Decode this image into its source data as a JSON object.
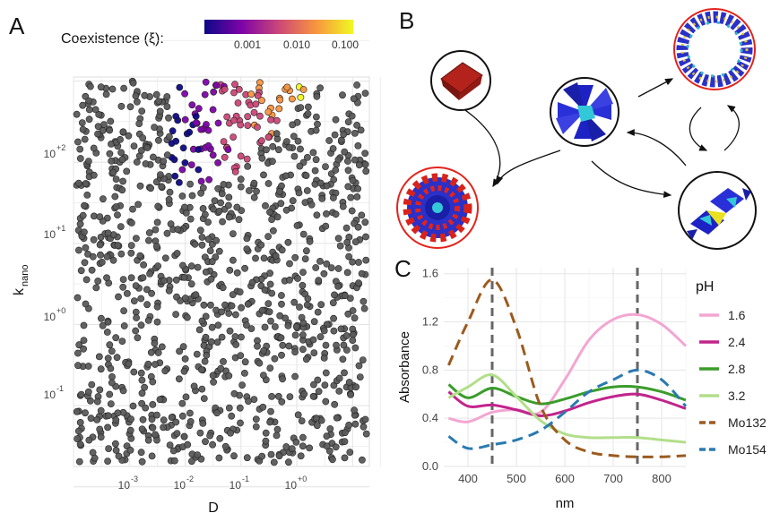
{
  "panels": {
    "a": "A",
    "b": "B",
    "c": "C"
  },
  "scatter": {
    "legend_title": "Coexistence (ξ):",
    "legend_ticks": [
      "0.001",
      "0.010",
      "0.100"
    ],
    "legend_colors": [
      "#0d0887",
      "#7e03a8",
      "#cc4778",
      "#f89540",
      "#f0f921"
    ],
    "xlabel": "D",
    "ylabel_main": "k",
    "ylabel_sub": "nano",
    "x_ticks": [
      {
        "base": "10",
        "exp": "-3",
        "value": -3
      },
      {
        "base": "10",
        "exp": "-2",
        "value": -2
      },
      {
        "base": "10",
        "exp": "-1",
        "value": -1
      },
      {
        "base": "10",
        "exp": "+0",
        "value": 0
      }
    ],
    "y_ticks": [
      {
        "base": "10",
        "exp": "-1",
        "value": -1
      },
      {
        "base": "10",
        "exp": "+0",
        "value": 0
      },
      {
        "base": "10",
        "exp": "+1",
        "value": 1
      },
      {
        "base": "10",
        "exp": "+2",
        "value": 2
      }
    ],
    "gray_color": "#5a5a5a",
    "grid_color": "#e6e6e6"
  },
  "network": {
    "ring_color": "#e3231b",
    "edge_color": "#111111"
  },
  "chart_data": {
    "type": "line",
    "title": "",
    "xlabel": "nm",
    "ylabel": "Absorbance",
    "xlim": [
      350,
      850
    ],
    "ylim": [
      0,
      1.65
    ],
    "x_ticks": [
      400,
      500,
      600,
      700,
      800
    ],
    "y_ticks": [
      "0.0",
      "0.4",
      "0.8",
      "1.2",
      "1.6"
    ],
    "grid": true,
    "legend_title": "pH",
    "legend_placement": "right",
    "vlines": [
      450,
      750
    ],
    "x": [
      360,
      400,
      450,
      500,
      550,
      600,
      650,
      700,
      750,
      800,
      850
    ],
    "series": [
      {
        "name": "1.6",
        "color": "#f3a6d2",
        "dash": false,
        "values": [
          0.4,
          0.37,
          0.45,
          0.47,
          0.45,
          0.72,
          1.05,
          1.22,
          1.26,
          1.18,
          1.0
        ]
      },
      {
        "name": "2.4",
        "color": "#c2248c",
        "dash": false,
        "values": [
          0.62,
          0.5,
          0.51,
          0.47,
          0.42,
          0.46,
          0.53,
          0.58,
          0.6,
          0.55,
          0.48
        ]
      },
      {
        "name": "2.8",
        "color": "#3a9c2a",
        "dash": false,
        "values": [
          0.68,
          0.57,
          0.65,
          0.58,
          0.52,
          0.56,
          0.62,
          0.66,
          0.66,
          0.62,
          0.55
        ]
      },
      {
        "name": "3.2",
        "color": "#b2df8a",
        "dash": false,
        "values": [
          0.57,
          0.66,
          0.76,
          0.58,
          0.38,
          0.27,
          0.24,
          0.24,
          0.24,
          0.22,
          0.2
        ]
      },
      {
        "name": "Mo132",
        "color": "#9c5a1e",
        "dash": true,
        "values": [
          0.84,
          1.2,
          1.55,
          1.15,
          0.5,
          0.22,
          0.12,
          0.09,
          0.08,
          0.08,
          0.09
        ]
      },
      {
        "name": "Mo154",
        "color": "#2a7ab0",
        "dash": true,
        "values": [
          0.25,
          0.15,
          0.18,
          0.22,
          0.3,
          0.45,
          0.62,
          0.72,
          0.8,
          0.72,
          0.5
        ]
      }
    ]
  }
}
